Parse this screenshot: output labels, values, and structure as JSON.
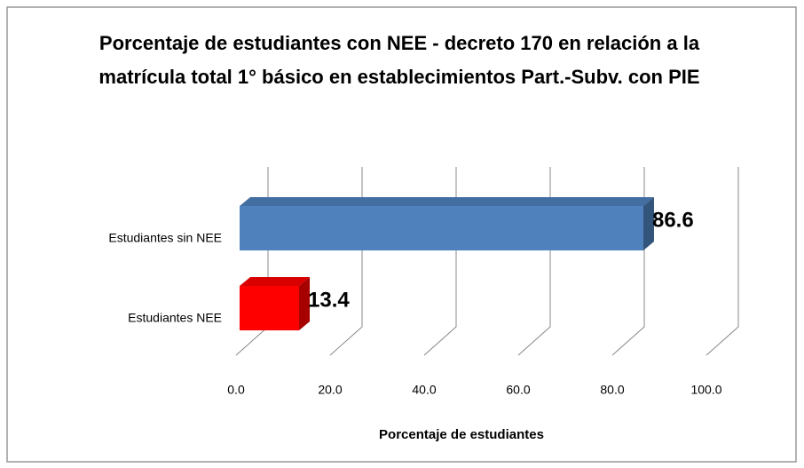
{
  "chart_data": {
    "type": "bar3d_horizontal",
    "title": "Porcentaje de estudiantes con NEE - decreto 170 en relación a la matrícula total 1° básico en establecimientos Part.-Subv.  con PIE",
    "x_label": "Porcentaje de estudiantes",
    "categories": [
      "Estudiantes sin NEE",
      "Estudiantes NEE"
    ],
    "values": [
      86.6,
      13.4
    ],
    "colors": [
      "#4f81bd",
      "#ff0000"
    ],
    "xlim": [
      0,
      100
    ],
    "xticks": [
      {
        "value": 0,
        "label": "0.0"
      },
      {
        "value": 20,
        "label": "20.0"
      },
      {
        "value": 40,
        "label": "40.0"
      },
      {
        "value": 60,
        "label": "60.0"
      },
      {
        "value": 80,
        "label": "80.0"
      },
      {
        "value": 100,
        "label": "100.0"
      }
    ],
    "grid": true
  }
}
